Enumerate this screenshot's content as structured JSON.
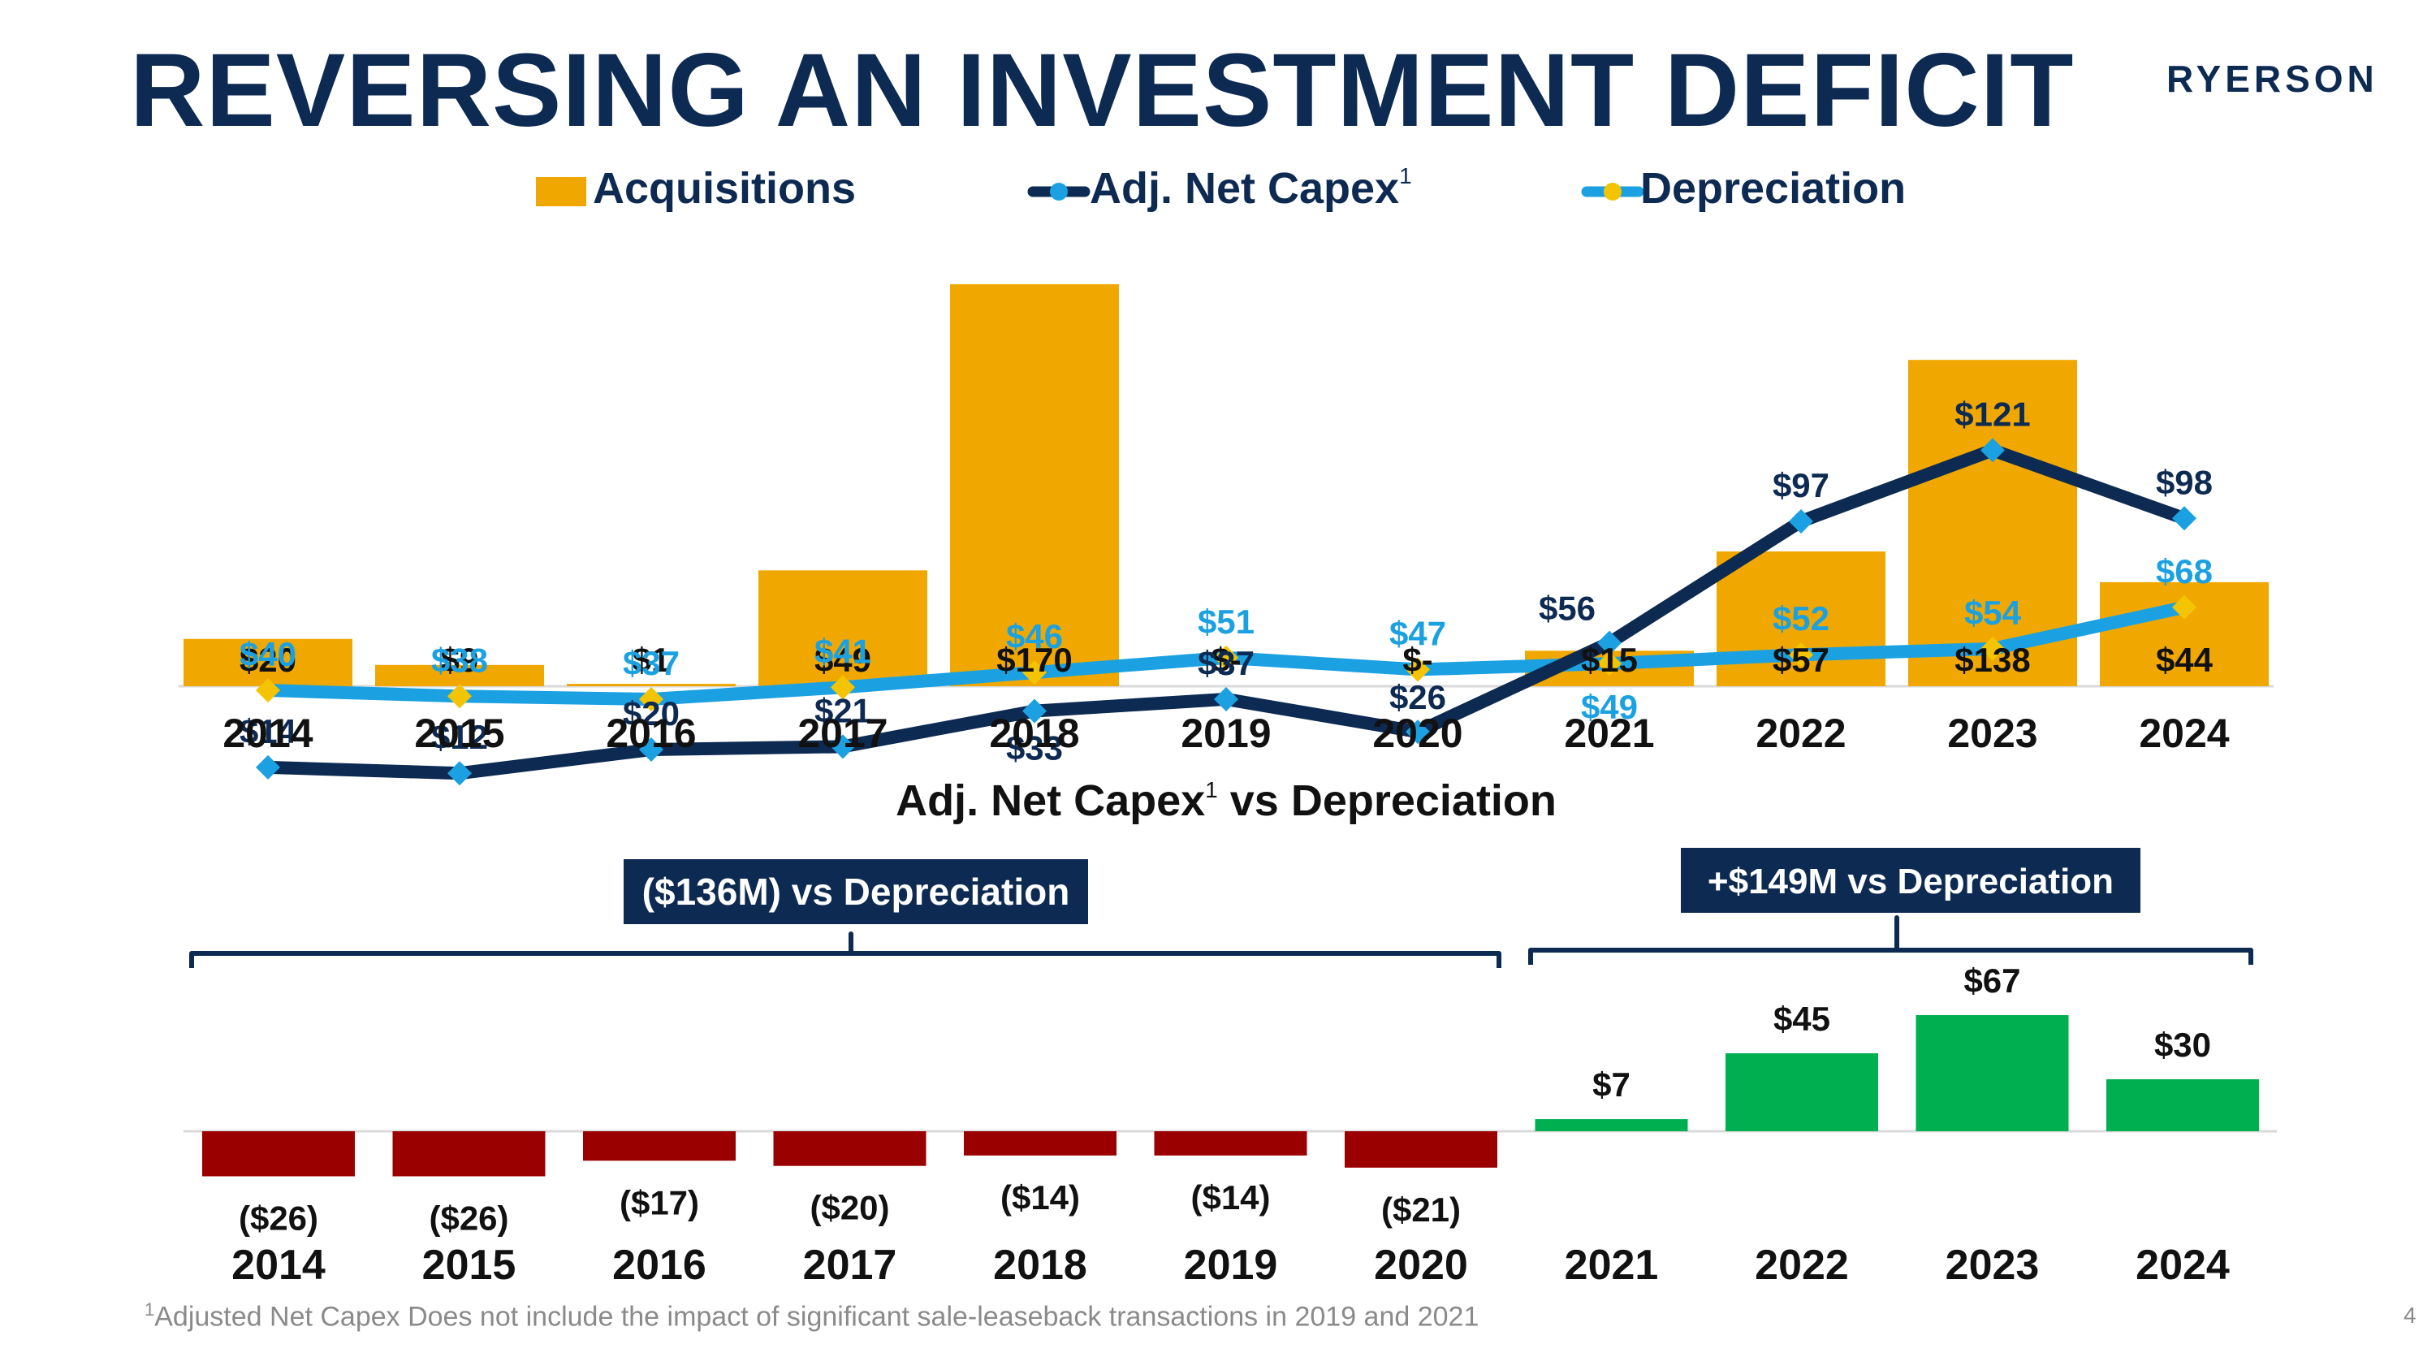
{
  "header": {
    "title": "REVERSING AN INVESTMENT DEFICIT",
    "logo_text": "RYERSON"
  },
  "footnote": {
    "marker": "1",
    "text": "Adjusted Net Capex Does not include the impact of significant sale-leaseback transactions in 2019 and 2021"
  },
  "page_number": "4",
  "colors": {
    "acquisitions": "#f0a800",
    "capex_line": "#0d2a52",
    "capex_marker": "#1ba1e2",
    "depreciation_line": "#1ba1e2",
    "depreciation_marker": "#f5c400",
    "negative_bar": "#9b0000",
    "positive_bar": "#00b050",
    "callout_bg": "#0d2a52",
    "callout_text": "#ffffff",
    "dark_text": "#0d2a52"
  },
  "chart_data": [
    {
      "type": "bar",
      "title": "",
      "categories": [
        "2014",
        "2015",
        "2016",
        "2017",
        "2018",
        "2019",
        "2020",
        "2021",
        "2022",
        "2023",
        "2024"
      ],
      "legend": [
        {
          "name": "Acquisitions",
          "marker": "",
          "kind": "bar"
        },
        {
          "name": "Adj. Net Capex",
          "marker": "1",
          "kind": "line"
        },
        {
          "name": "Depreciation",
          "marker": "",
          "kind": "line"
        }
      ],
      "legend_position": "top",
      "ylim": [
        0,
        180
      ],
      "series": [
        {
          "name": "Acquisitions",
          "type": "bar",
          "values": [
            20,
            9,
            1,
            49,
            170,
            0,
            0,
            15,
            57,
            138,
            44
          ],
          "labels": [
            "$20",
            "$9",
            "$1",
            "$49",
            "$170",
            "$-",
            "$-",
            "$15",
            "$57",
            "$138",
            "$44"
          ]
        },
        {
          "name": "Adj. Net Capex",
          "type": "line",
          "values": [
            14,
            12,
            20,
            21,
            33,
            37,
            26,
            56,
            97,
            121,
            98
          ],
          "labels": [
            "$14",
            "$12",
            "$20",
            "$21",
            "$33",
            "$37",
            "$26",
            "$56",
            "$97",
            "$121",
            "$98"
          ]
        },
        {
          "name": "Depreciation",
          "type": "line",
          "values": [
            40,
            38,
            37,
            41,
            46,
            51,
            47,
            49,
            52,
            54,
            68
          ],
          "labels": [
            "$40",
            "$38",
            "$37",
            "$41",
            "$46",
            "$51",
            "$47",
            "$49",
            "$52",
            "$54",
            "$68"
          ]
        }
      ]
    },
    {
      "type": "bar",
      "title": "Adj. Net Capex",
      "title_marker": "1",
      "title_suffix": " vs Depreciation",
      "categories": [
        "2014",
        "2015",
        "2016",
        "2017",
        "2018",
        "2019",
        "2020",
        "2021",
        "2022",
        "2023",
        "2024"
      ],
      "ylim": [
        -30,
        70
      ],
      "series": [
        {
          "name": "Adj. Net Capex vs Depreciation",
          "values": [
            -26,
            -26,
            -17,
            -20,
            -14,
            -14,
            -21,
            7,
            45,
            67,
            30
          ],
          "labels": [
            "($26)",
            "($26)",
            "($17)",
            "($20)",
            "($14)",
            "($14)",
            "($21)",
            "$7",
            "$45",
            "$67",
            "$30"
          ]
        }
      ],
      "annotations": [
        {
          "text": "($136M) vs Depreciation",
          "span": [
            "2014",
            "2020"
          ]
        },
        {
          "text": "+$149M vs Depreciation",
          "span": [
            "2021",
            "2024"
          ]
        }
      ]
    }
  ]
}
